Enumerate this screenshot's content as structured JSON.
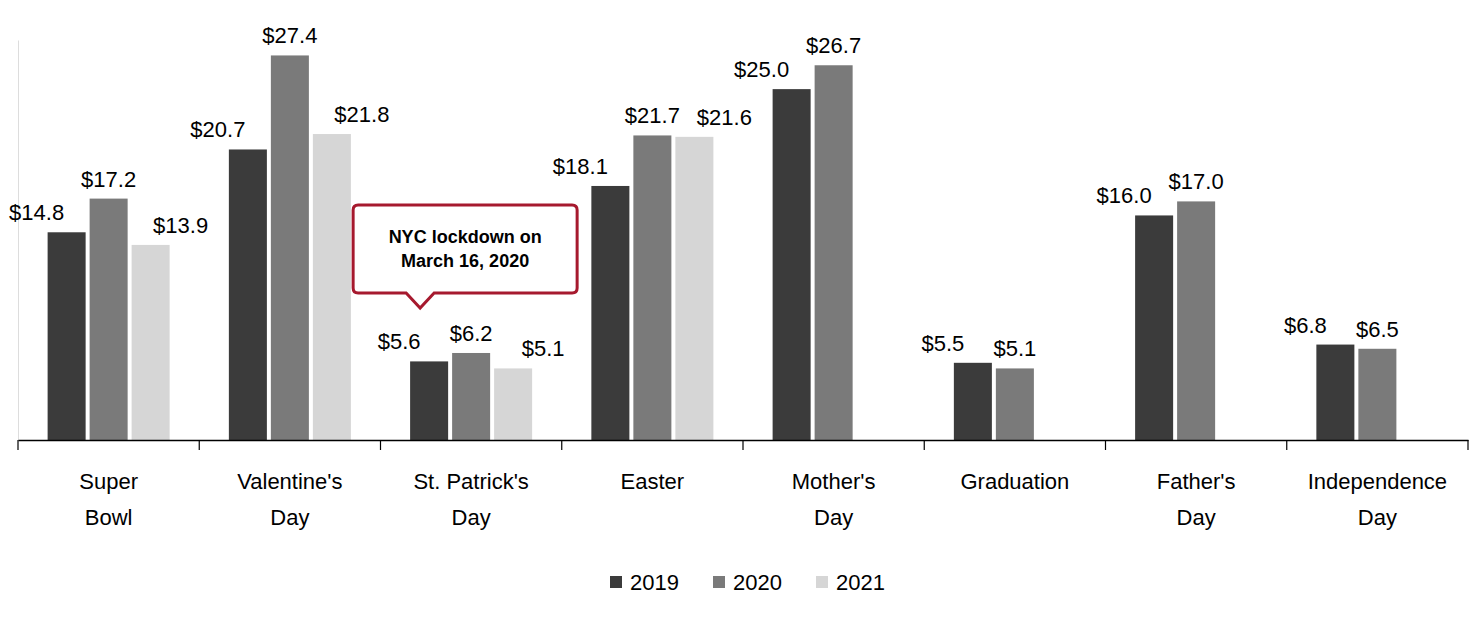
{
  "chart_data": {
    "type": "bar",
    "categories": [
      "Super Bowl",
      "Valentine's Day",
      "St. Patrick's Day",
      "Easter",
      "Mother's Day",
      "Graduation",
      "Father's Day",
      "Independence Day"
    ],
    "series": [
      {
        "name": "2019",
        "color": "#3b3b3b",
        "values": [
          14.8,
          20.7,
          5.6,
          18.1,
          25.0,
          5.5,
          16.0,
          6.8
        ],
        "value_labels": [
          "$14.8",
          "$20.7",
          "$5.6",
          "$18.1",
          "$25.0",
          "$5.5",
          "$16.0",
          "$6.8"
        ]
      },
      {
        "name": "2020",
        "color": "#7a7a7a",
        "values": [
          17.2,
          27.4,
          6.2,
          21.7,
          26.7,
          5.1,
          17.0,
          6.5
        ],
        "value_labels": [
          "$17.2",
          "$27.4",
          "$6.2",
          "$21.7",
          "$26.7",
          "$5.1",
          "$17.0",
          "$6.5"
        ]
      },
      {
        "name": "2021",
        "color": "#d6d6d6",
        "values": [
          13.9,
          21.8,
          5.1,
          21.6,
          null,
          null,
          null,
          null
        ],
        "value_labels": [
          "$13.9",
          "$21.8",
          "$5.1",
          "$21.6",
          null,
          null,
          null,
          null
        ]
      }
    ],
    "ylim": [
      0,
      28.5
    ],
    "yticks": [],
    "grid": false,
    "data_labels": true,
    "tick_labels": "x",
    "legend": "bottom",
    "annotations": [
      {
        "label": "NYC lockdown on March 16, 2020",
        "category": "St. Patrick's Day"
      }
    ]
  }
}
